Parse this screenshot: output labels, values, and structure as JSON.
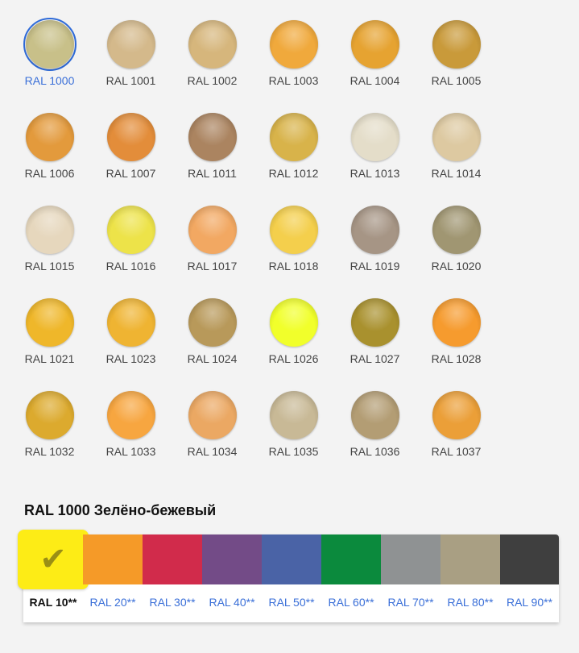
{
  "colors": [
    {
      "label": "RAL 1000",
      "color": "#c8c089",
      "selected": true
    },
    {
      "label": "RAL 1001",
      "color": "#d4b98b"
    },
    {
      "label": "RAL 1002",
      "color": "#d6b67c"
    },
    {
      "label": "RAL 1003",
      "color": "#f0a93c"
    },
    {
      "label": "RAL 1004",
      "color": "#e6a331"
    },
    {
      "label": "RAL 1005",
      "color": "#c99a3a"
    },
    {
      "label": "RAL 1006",
      "color": "#e39a3c"
    },
    {
      "label": "RAL 1007",
      "color": "#e38d3a"
    },
    {
      "label": "RAL 1011",
      "color": "#ab8460"
    },
    {
      "label": "RAL 1012",
      "color": "#d8b34a"
    },
    {
      "label": "RAL 1013",
      "color": "#e4ddc9"
    },
    {
      "label": "RAL 1014",
      "color": "#ddc9a1"
    },
    {
      "label": "RAL 1015",
      "color": "#e6d7bd"
    },
    {
      "label": "RAL 1016",
      "color": "#ede349"
    },
    {
      "label": "RAL 1017",
      "color": "#f2a862"
    },
    {
      "label": "RAL 1018",
      "color": "#f4cf4c"
    },
    {
      "label": "RAL 1019",
      "color": "#a69585"
    },
    {
      "label": "RAL 1020",
      "color": "#a09672"
    },
    {
      "label": "RAL 1021",
      "color": "#efb72a"
    },
    {
      "label": "RAL 1023",
      "color": "#efb432"
    },
    {
      "label": "RAL 1024",
      "color": "#b8995a"
    },
    {
      "label": "RAL 1026",
      "color": "#f1ff2b"
    },
    {
      "label": "RAL 1027",
      "color": "#a9912e"
    },
    {
      "label": "RAL 1028",
      "color": "#f69b2e"
    },
    {
      "label": "RAL 1032",
      "color": "#dcaa2e"
    },
    {
      "label": "RAL 1033",
      "color": "#f7a640"
    },
    {
      "label": "RAL 1034",
      "color": "#eba863"
    },
    {
      "label": "RAL 1035",
      "color": "#c8b996"
    },
    {
      "label": "RAL 1036",
      "color": "#b39d74"
    },
    {
      "label": "RAL 1037",
      "color": "#eb9f38"
    }
  ],
  "selected_title": "RAL 1000 Зелёно-бежевый",
  "groups": [
    {
      "label": "RAL 10**",
      "color": "#fdec16",
      "selected": true
    },
    {
      "label": "RAL 20**",
      "color": "#f59a28"
    },
    {
      "label": "RAL 30**",
      "color": "#d12b4b"
    },
    {
      "label": "RAL 40**",
      "color": "#734b87"
    },
    {
      "label": "RAL 50**",
      "color": "#4a63a6"
    },
    {
      "label": "RAL 60**",
      "color": "#0b8a3d"
    },
    {
      "label": "RAL 70**",
      "color": "#8f9293"
    },
    {
      "label": "RAL 80**",
      "color": "#a99f83"
    },
    {
      "label": "RAL 90**",
      "color": "#3f3f3f"
    }
  ],
  "check_icon": "✔"
}
